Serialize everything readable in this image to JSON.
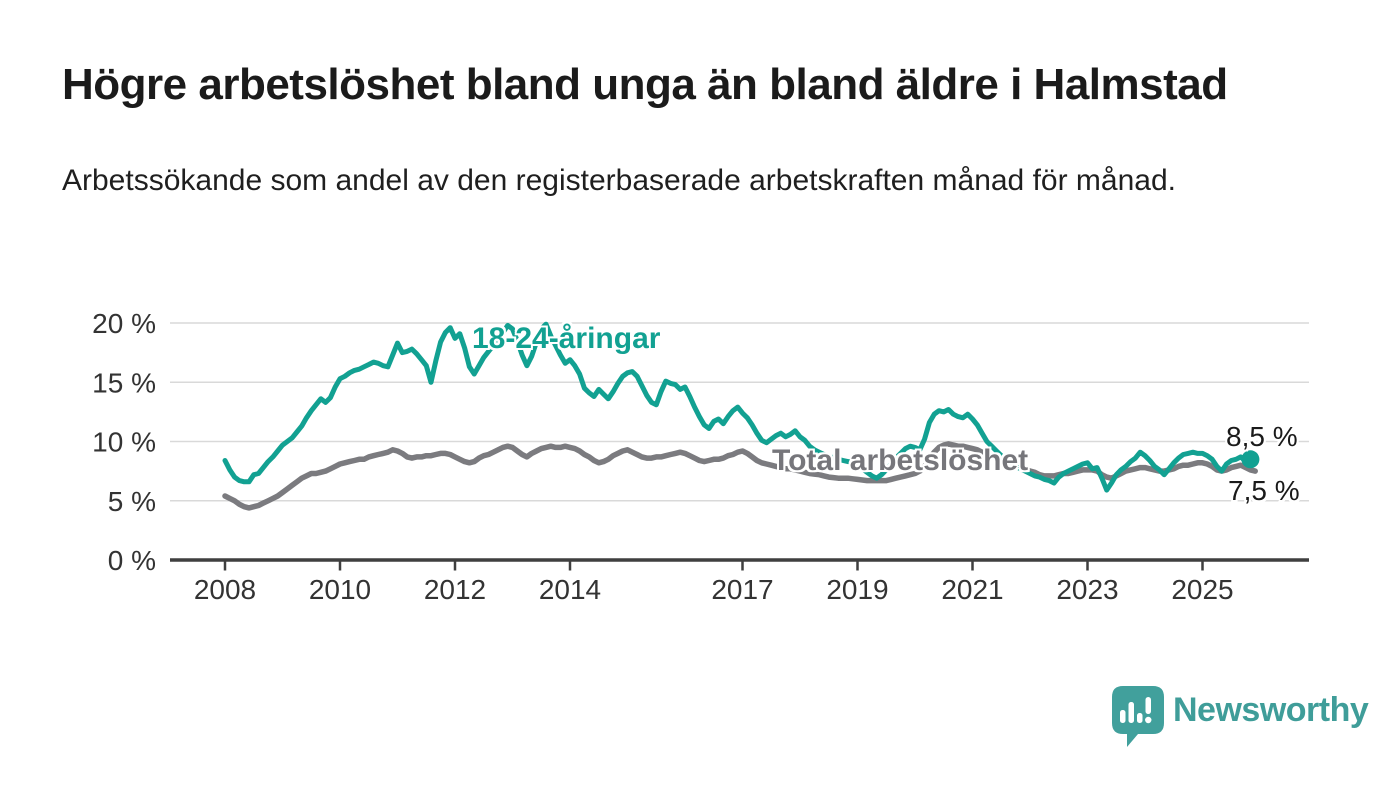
{
  "header": {
    "title": "Högre arbetslöshet bland unga än bland äldre i Halmstad",
    "subtitle": "Arbetssökande som andel av den registerbaserade arbetskraften månad för månad."
  },
  "footer": {
    "brand": "Newsworthy"
  },
  "colors": {
    "accent_teal": "#12a192",
    "line_gray": "#7b7b7f",
    "logo_teal": "#41a09c",
    "grid": "#d9d9d9",
    "axis": "#3f3f3f",
    "axis_text": "#333333",
    "label_text": "#1a1a1a"
  },
  "chart_data": {
    "type": "line",
    "title": "Högre arbetslöshet bland unga än bland äldre i Halmstad",
    "subtitle": "Arbetssökande som andel av den registerbaserade arbetskraften månad för månad.",
    "unit": "%",
    "frequency": "monthly",
    "grid": true,
    "x_axis": {
      "ticks": [
        2008,
        2010,
        2012,
        2014,
        2017,
        2019,
        2021,
        2023,
        2025
      ]
    },
    "y_axis": {
      "ticks": [
        0,
        5,
        10,
        15,
        20
      ],
      "labels": [
        "0 %",
        "5 %",
        "10 %",
        "15 %",
        "20 %"
      ],
      "range": [
        0,
        21
      ]
    },
    "series": [
      {
        "name": "18-24-åringar",
        "color": "#12a192",
        "start_year": 2008,
        "points_per_year": 12,
        "end_label": "8,5 %",
        "end_value": 8.5,
        "end_dot": true,
        "line_width": 5,
        "values": [
          8.4,
          7.6,
          7.0,
          6.7,
          6.6,
          6.6,
          7.2,
          7.3,
          7.8,
          8.3,
          8.7,
          9.2,
          9.7,
          10.0,
          10.3,
          10.8,
          11.3,
          12.0,
          12.6,
          13.1,
          13.6,
          13.3,
          13.7,
          14.6,
          15.3,
          15.5,
          15.8,
          16.0,
          16.1,
          16.3,
          16.5,
          16.7,
          16.6,
          16.4,
          16.3,
          17.3,
          18.3,
          17.5,
          17.6,
          17.8,
          17.4,
          16.9,
          16.4,
          15.0,
          16.8,
          18.4,
          19.2,
          19.6,
          18.7,
          19.1,
          17.9,
          16.3,
          15.7,
          16.4,
          17.1,
          17.6,
          18.1,
          18.6,
          19.2,
          19.8,
          19.5,
          18.5,
          17.3,
          16.4,
          17.2,
          18.4,
          19.5,
          19.9,
          18.9,
          18.1,
          17.3,
          16.6,
          16.9,
          16.4,
          15.7,
          14.5,
          14.1,
          13.8,
          14.4,
          14.0,
          13.6,
          14.2,
          14.9,
          15.5,
          15.8,
          15.9,
          15.5,
          14.7,
          13.9,
          13.3,
          13.1,
          14.2,
          15.1,
          14.9,
          14.8,
          14.4,
          14.6,
          13.8,
          12.9,
          12.1,
          11.4,
          11.1,
          11.7,
          11.9,
          11.5,
          12.1,
          12.6,
          12.9,
          12.4,
          12.0,
          11.4,
          10.7,
          10.1,
          9.9,
          10.2,
          10.5,
          10.7,
          10.4,
          10.6,
          10.9,
          10.4,
          10.1,
          9.6,
          9.3,
          9.1,
          8.9,
          8.8,
          8.6,
          8.5,
          8.4,
          8.3,
          8.3,
          8.0,
          7.7,
          7.4,
          7.1,
          6.9,
          7.2,
          7.6,
          8.1,
          8.6,
          9.0,
          9.4,
          9.6,
          9.5,
          9.3,
          10.2,
          11.6,
          12.3,
          12.6,
          12.5,
          12.7,
          12.3,
          12.1,
          12.0,
          12.3,
          11.9,
          11.4,
          10.7,
          10.0,
          9.6,
          9.2,
          8.8,
          8.5,
          8.2,
          7.9,
          7.7,
          7.5,
          7.3,
          7.1,
          7.0,
          6.8,
          6.7,
          6.5,
          7.0,
          7.3,
          7.5,
          7.7,
          7.9,
          8.1,
          8.2,
          7.7,
          7.8,
          6.9,
          5.9,
          6.5,
          7.2,
          7.6,
          7.9,
          8.3,
          8.6,
          9.1,
          8.8,
          8.4,
          7.9,
          7.6,
          7.2,
          7.7,
          8.2,
          8.6,
          8.9,
          9.0,
          9.1,
          9.0,
          9.0,
          8.8,
          8.5,
          7.9,
          7.5,
          8.1,
          8.4,
          8.5,
          8.7,
          8.3,
          8.5
        ]
      },
      {
        "name": "Total arbetslöshet",
        "color": "#7b7b7f",
        "start_year": 2008,
        "points_per_year": 12,
        "end_label": "7,5 %",
        "end_value": 7.5,
        "end_dot": false,
        "line_width": 5.5,
        "values": [
          5.4,
          5.2,
          5.0,
          4.7,
          4.5,
          4.4,
          4.5,
          4.6,
          4.8,
          5.0,
          5.2,
          5.4,
          5.7,
          6.0,
          6.3,
          6.6,
          6.9,
          7.1,
          7.3,
          7.3,
          7.4,
          7.5,
          7.7,
          7.9,
          8.1,
          8.2,
          8.3,
          8.4,
          8.5,
          8.5,
          8.7,
          8.8,
          8.9,
          9.0,
          9.1,
          9.3,
          9.2,
          9.0,
          8.7,
          8.6,
          8.7,
          8.7,
          8.8,
          8.8,
          8.9,
          9.0,
          9.0,
          8.9,
          8.7,
          8.5,
          8.3,
          8.2,
          8.3,
          8.6,
          8.8,
          8.9,
          9.1,
          9.3,
          9.5,
          9.6,
          9.5,
          9.2,
          8.9,
          8.7,
          9.0,
          9.2,
          9.4,
          9.5,
          9.6,
          9.5,
          9.5,
          9.6,
          9.5,
          9.4,
          9.2,
          8.9,
          8.7,
          8.4,
          8.2,
          8.3,
          8.5,
          8.8,
          9.0,
          9.2,
          9.3,
          9.1,
          8.9,
          8.7,
          8.6,
          8.6,
          8.7,
          8.7,
          8.8,
          8.9,
          9.0,
          9.1,
          9.0,
          8.8,
          8.6,
          8.4,
          8.3,
          8.4,
          8.5,
          8.5,
          8.6,
          8.8,
          8.9,
          9.1,
          9.2,
          9.0,
          8.7,
          8.4,
          8.2,
          8.1,
          8.0,
          7.9,
          7.8,
          7.7,
          7.7,
          7.6,
          7.5,
          7.4,
          7.3,
          7.25,
          7.2,
          7.1,
          7.0,
          6.95,
          6.9,
          6.9,
          6.9,
          6.85,
          6.8,
          6.75,
          6.7,
          6.7,
          6.7,
          6.7,
          6.7,
          6.8,
          6.9,
          7.0,
          7.1,
          7.2,
          7.3,
          7.5,
          7.9,
          8.5,
          9.1,
          9.5,
          9.7,
          9.8,
          9.7,
          9.6,
          9.6,
          9.5,
          9.4,
          9.3,
          9.1,
          9.0,
          8.8,
          8.7,
          8.5,
          8.3,
          8.2,
          8.0,
          7.8,
          7.7,
          7.5,
          7.4,
          7.2,
          7.1,
          7.1,
          7.1,
          7.2,
          7.3,
          7.3,
          7.4,
          7.5,
          7.6,
          7.6,
          7.6,
          7.5,
          7.2,
          7.0,
          6.9,
          7.1,
          7.3,
          7.5,
          7.6,
          7.7,
          7.8,
          7.8,
          7.7,
          7.6,
          7.5,
          7.5,
          7.6,
          7.7,
          7.9,
          8.0,
          8.0,
          8.1,
          8.2,
          8.2,
          8.1,
          7.9,
          7.6,
          7.5,
          7.6,
          7.8,
          7.9,
          8.0,
          7.8,
          7.6,
          7.5
        ]
      }
    ]
  }
}
